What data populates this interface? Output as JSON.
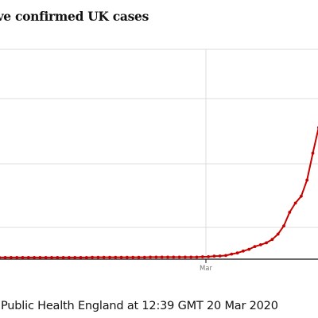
{
  "title": "ive confirmed UK cases",
  "source": "Public Health England at 12:39 GMT 20 Mar 2020",
  "colors": {
    "line": "#c70000",
    "grid": "#dcdcdc",
    "axis": "#121212",
    "text": "#767676"
  },
  "chart_data": {
    "type": "line",
    "title": "ive confirmed UK cases",
    "xlabel": "",
    "ylabel": "",
    "x_tick_labels": [
      "Mar"
    ],
    "grid": true,
    "legend": "none",
    "series": [
      {
        "color": "#c70000",
        "values": [
          2,
          2,
          2,
          2,
          2,
          2,
          2,
          2,
          2,
          2,
          2,
          2,
          2,
          2,
          2,
          2,
          2,
          8,
          9,
          9,
          9,
          9,
          9,
          9,
          9,
          9,
          9,
          13,
          13,
          13,
          13,
          13,
          13,
          13,
          13,
          13,
          20,
          23,
          36,
          40,
          51,
          87,
          116,
          164,
          209,
          278,
          321,
          373,
          456,
          590,
          798,
          1140,
          1372,
          1543,
          1950,
          2626,
          3269,
          3983
        ]
      }
    ]
  }
}
